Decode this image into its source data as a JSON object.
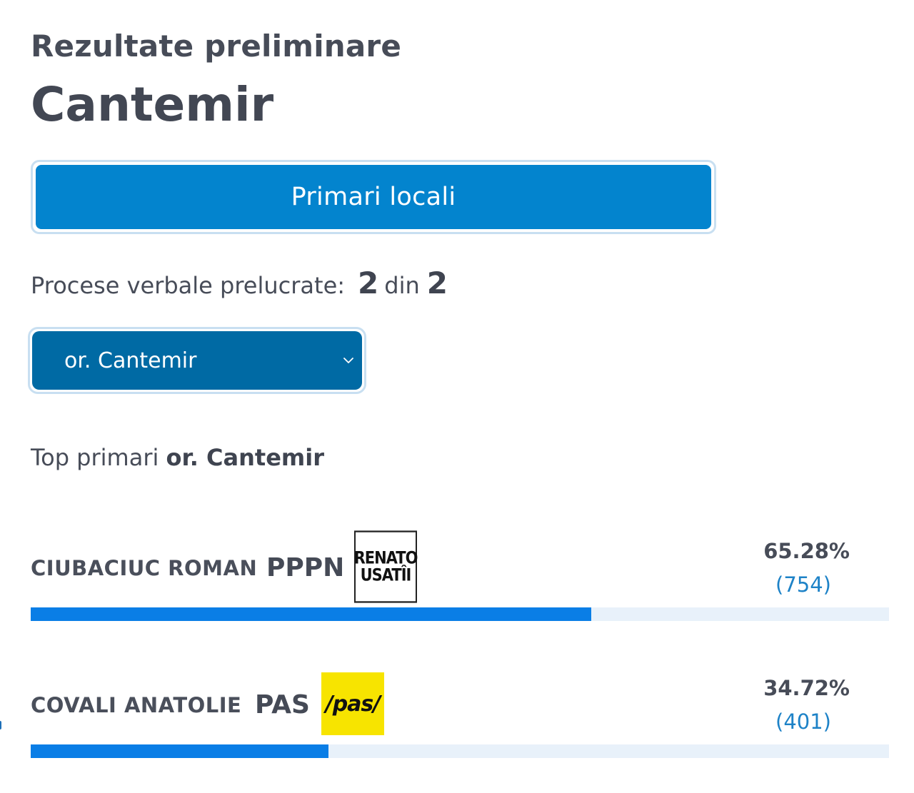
{
  "header": {
    "subtitle": "Rezultate preliminare",
    "title": "Cantemir"
  },
  "election_button": {
    "label": "Primari locali"
  },
  "processed": {
    "label": "Procese verbale prelucrate:",
    "done": "2",
    "separator": "din",
    "total": "2"
  },
  "locality_select": {
    "selected": "or. Cantemir"
  },
  "top_section": {
    "label": "Top primari",
    "locality": "or. Cantemir"
  },
  "candidates": [
    {
      "name": "CIUBACIUC ROMAN",
      "party": "PPPN",
      "logo_text_line1": "RENATO",
      "logo_text_line2": "USATÎI",
      "percent": "65.28%",
      "votes": "(754)",
      "share": 0.6528
    },
    {
      "name": "COVALI ANATOLIE",
      "party": "PAS",
      "logo_text_line1": "/pas/",
      "percent": "34.72%",
      "votes": "(401)",
      "share": 0.3472
    }
  ],
  "colors": {
    "accent": "#0384ce",
    "select_bg": "#006aa4",
    "bar_fill": "#0a7ee6",
    "bar_track": "#e8f1fa",
    "votes_text": "#1d82c7",
    "pas_yellow": "#f7e400"
  }
}
